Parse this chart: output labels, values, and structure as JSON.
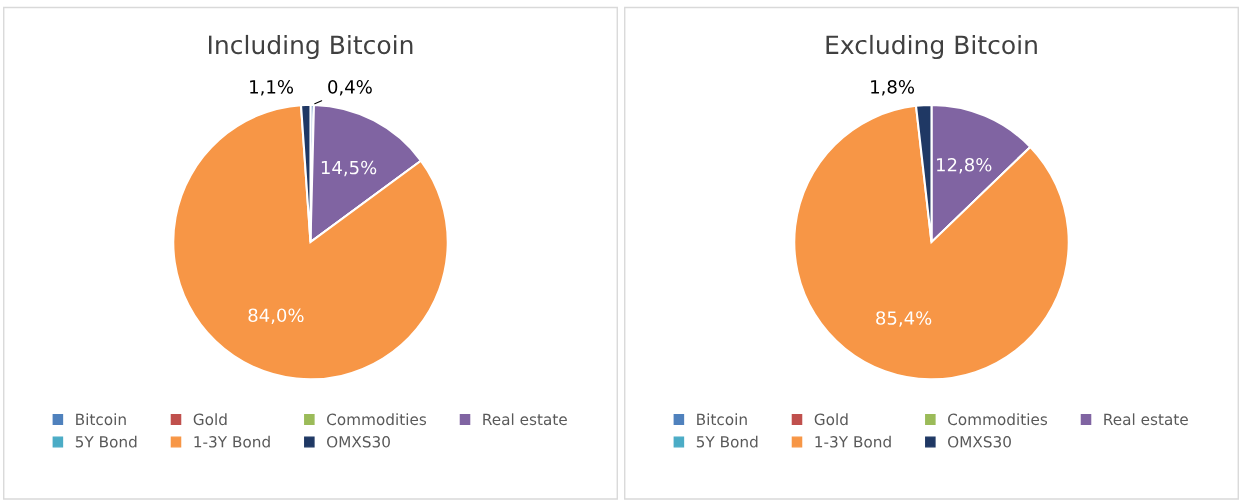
{
  "chart_data": [
    {
      "type": "pie",
      "title": "Including Bitcoin",
      "categories": [
        "Bitcoin",
        "Gold",
        "Commodities",
        "Real estate",
        "5Y Bond",
        "1-3Y Bond",
        "OMXS30"
      ],
      "values": [
        0.4,
        0,
        0,
        14.5,
        0,
        84.0,
        1.1
      ],
      "value_labels": [
        "0,4%",
        null,
        null,
        "14,5%",
        null,
        "84,0%",
        "1,1%"
      ],
      "colors": [
        "#4f81bd",
        "#c0504d",
        "#9bbb59",
        "#8064a2",
        "#4bacc6",
        "#f79646",
        "#1f3864"
      ],
      "legend": "bottom"
    },
    {
      "type": "pie",
      "title": "Excluding Bitcoin",
      "categories": [
        "Bitcoin",
        "Gold",
        "Commodities",
        "Real estate",
        "5Y Bond",
        "1-3Y Bond",
        "OMXS30"
      ],
      "values": [
        0,
        0,
        0,
        12.8,
        0,
        85.4,
        1.8
      ],
      "value_labels": [
        null,
        null,
        null,
        "12,8%",
        null,
        "85,4%",
        "1,8%"
      ],
      "colors": [
        "#4f81bd",
        "#c0504d",
        "#9bbb59",
        "#8064a2",
        "#4bacc6",
        "#f79646",
        "#1f3864"
      ],
      "legend": "bottom"
    }
  ]
}
